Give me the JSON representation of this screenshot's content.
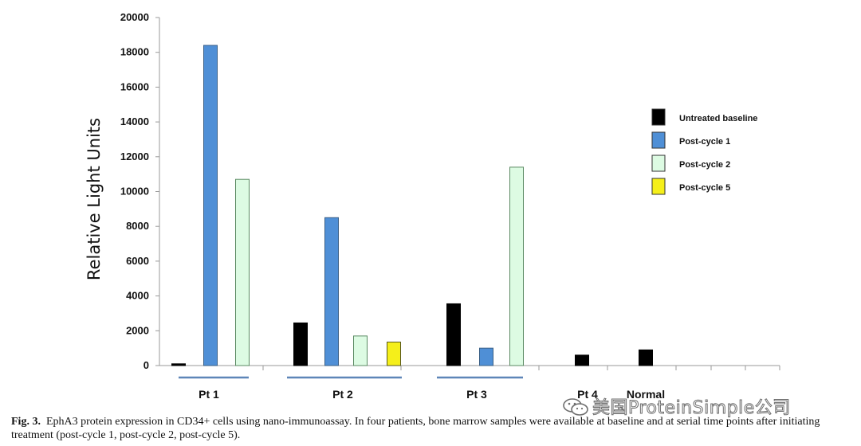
{
  "chart_data": {
    "type": "bar",
    "title": "",
    "xlabel": "",
    "ylabel": "Relative Light Units",
    "ylim": [
      0,
      20000
    ],
    "yticks": [
      0,
      2000,
      4000,
      6000,
      8000,
      10000,
      12000,
      14000,
      16000,
      18000,
      20000
    ],
    "grid": false,
    "legend_position": "right",
    "series": [
      {
        "name": "Untreated baseline",
        "color": "#000000"
      },
      {
        "name": "Post-cycle 1",
        "color": "#4f8fd6"
      },
      {
        "name": "Post-cycle 2",
        "color": "#ddfbe3"
      },
      {
        "name": "Post-cycle 5",
        "color": "#f5ef1a"
      }
    ],
    "groups": [
      {
        "label": "Pt 1",
        "bars": [
          {
            "series": "Untreated baseline",
            "value": 100
          },
          {
            "series": "Post-cycle 1",
            "value": 18400
          },
          {
            "series": "Post-cycle 2",
            "value": 10700
          }
        ]
      },
      {
        "label": "Pt 2",
        "bars": [
          {
            "series": "Untreated baseline",
            "value": 2450
          },
          {
            "series": "Post-cycle 1",
            "value": 8500
          },
          {
            "series": "Post-cycle 2",
            "value": 1700
          },
          {
            "series": "Post-cycle 5",
            "value": 1350
          }
        ]
      },
      {
        "label": "Pt 3",
        "bars": [
          {
            "series": "Untreated baseline",
            "value": 3550
          },
          {
            "series": "Post-cycle 1",
            "value": 1000
          },
          {
            "series": "Post-cycle 2",
            "value": 11400
          }
        ]
      },
      {
        "label": "Pt 4",
        "bars": [
          {
            "series": "Untreated baseline",
            "value": 600
          }
        ]
      },
      {
        "label": "Normal",
        "bars": [
          {
            "series": "Untreated baseline",
            "value": 900
          }
        ]
      }
    ]
  },
  "caption": {
    "label": "Fig. 3.",
    "text": "EphA3 protein expression in CD34+ cells using nano-immunoassay. In four patients, bone marrow samples were available at baseline and at serial time points after initiating treatment (post-cycle 1, post-cycle 2, post-cycle 5)."
  },
  "watermark": {
    "text": "美国ProteinSimple公司",
    "icon": "wechat-icon"
  }
}
